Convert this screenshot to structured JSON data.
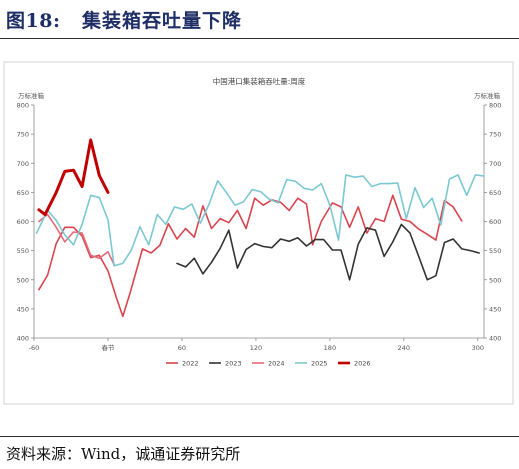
{
  "header": {
    "figure_number": "图18:",
    "figure_title": "集装箱吞吐量下降"
  },
  "source": "资料来源：Wind，诚通证券研究所",
  "colors": {
    "2022": "#d9454f",
    "2023": "#333333",
    "2024": "#e46a78",
    "2025": "#7cc8d2",
    "2026": "#c00000",
    "axis": "#888888",
    "heading": "#1f2f66"
  },
  "chart_data": {
    "type": "line",
    "title": "中国港口集装箱吞吐量:周度",
    "ylabel_left": "万标准箱",
    "ylabel_right": "万标准箱",
    "xlim": [
      -60,
      305
    ],
    "ylim": [
      400,
      800
    ],
    "x_ticks": [
      {
        "value": -60,
        "label": "-60"
      },
      {
        "value": 0,
        "label": "春节"
      },
      {
        "value": 60,
        "label": "60"
      },
      {
        "value": 120,
        "label": "120"
      },
      {
        "value": 180,
        "label": "180"
      },
      {
        "value": 240,
        "label": "240"
      },
      {
        "value": 300,
        "label": "300"
      }
    ],
    "y_ticks": [
      400,
      450,
      500,
      550,
      600,
      650,
      700,
      750,
      800
    ],
    "legend_position": "bottom",
    "series": [
      {
        "name": "2022",
        "color_key": "2022",
        "width": 1.6,
        "points": [
          [
            -56,
            483
          ],
          [
            -49,
            508
          ],
          [
            -42,
            562
          ],
          [
            -35,
            590
          ],
          [
            -28,
            590
          ],
          [
            -21,
            575
          ],
          [
            -14,
            538
          ],
          [
            -7,
            542
          ],
          [
            0,
            515
          ],
          [
            7,
            468
          ],
          [
            12,
            437
          ],
          [
            18,
            478
          ],
          [
            28,
            553
          ],
          [
            35,
            546
          ],
          [
            42,
            559
          ],
          [
            49,
            596
          ],
          [
            56,
            570
          ],
          [
            63,
            588
          ],
          [
            70,
            573
          ],
          [
            77,
            627
          ],
          [
            84,
            588
          ],
          [
            91,
            605
          ],
          [
            98,
            598
          ],
          [
            105,
            619
          ],
          [
            112,
            588
          ],
          [
            119,
            640
          ],
          [
            126,
            628
          ],
          [
            133,
            637
          ],
          [
            140,
            633
          ],
          [
            147,
            619
          ],
          [
            154,
            640
          ],
          [
            161,
            630
          ],
          [
            166,
            560
          ],
          [
            173,
            600
          ],
          [
            182,
            632
          ],
          [
            189,
            625
          ],
          [
            196,
            590
          ],
          [
            203,
            625
          ],
          [
            210,
            580
          ],
          [
            217,
            605
          ],
          [
            224,
            600
          ],
          [
            231,
            645
          ],
          [
            238,
            604
          ],
          [
            245,
            600
          ],
          [
            252,
            587
          ],
          [
            259,
            578
          ],
          [
            266,
            568
          ],
          [
            273,
            636
          ],
          [
            280,
            625
          ],
          [
            287,
            601
          ]
        ]
      },
      {
        "name": "2023",
        "color_key": "2023",
        "width": 1.6,
        "points": [
          [
            56,
            528
          ],
          [
            63,
            522
          ],
          [
            70,
            537
          ],
          [
            77,
            510
          ],
          [
            84,
            530
          ],
          [
            91,
            554
          ],
          [
            98,
            585
          ],
          [
            105,
            520
          ],
          [
            112,
            552
          ],
          [
            119,
            562
          ],
          [
            126,
            557
          ],
          [
            133,
            555
          ],
          [
            140,
            570
          ],
          [
            147,
            566
          ],
          [
            154,
            572
          ],
          [
            161,
            558
          ],
          [
            168,
            569
          ],
          [
            175,
            569
          ],
          [
            182,
            551
          ],
          [
            189,
            551
          ],
          [
            196,
            500
          ],
          [
            203,
            561
          ],
          [
            210,
            589
          ],
          [
            217,
            585
          ],
          [
            224,
            540
          ],
          [
            231,
            565
          ],
          [
            238,
            595
          ],
          [
            245,
            580
          ],
          [
            252,
            540
          ],
          [
            259,
            500
          ],
          [
            266,
            507
          ],
          [
            273,
            564
          ],
          [
            280,
            570
          ],
          [
            287,
            553
          ],
          [
            294,
            550
          ],
          [
            301,
            546
          ]
        ]
      },
      {
        "name": "2024",
        "color_key": "2024",
        "width": 1.6,
        "points": [
          [
            -56,
            600
          ],
          [
            -49,
            612
          ],
          [
            -42,
            590
          ],
          [
            -35,
            565
          ],
          [
            -28,
            582
          ],
          [
            -21,
            580
          ],
          [
            -14,
            542
          ],
          [
            -7,
            537
          ],
          [
            0,
            548
          ],
          [
            5,
            526
          ]
        ]
      },
      {
        "name": "2025",
        "color_key": "2025",
        "width": 1.6,
        "points": [
          [
            -58,
            580
          ],
          [
            -49,
            619
          ],
          [
            -42,
            602
          ],
          [
            -35,
            577
          ],
          [
            -28,
            560
          ],
          [
            -21,
            595
          ],
          [
            -14,
            645
          ],
          [
            -7,
            641
          ],
          [
            0,
            603
          ],
          [
            5,
            524
          ],
          [
            12,
            528
          ],
          [
            19,
            551
          ],
          [
            26,
            591
          ],
          [
            33,
            560
          ],
          [
            40,
            612
          ],
          [
            47,
            595
          ],
          [
            54,
            625
          ],
          [
            61,
            621
          ],
          [
            68,
            630
          ],
          [
            75,
            597
          ],
          [
            82,
            630
          ],
          [
            89,
            670
          ],
          [
            96,
            650
          ],
          [
            103,
            628
          ],
          [
            110,
            634
          ],
          [
            117,
            655
          ],
          [
            124,
            651
          ],
          [
            131,
            638
          ],
          [
            138,
            632
          ],
          [
            145,
            672
          ],
          [
            152,
            669
          ],
          [
            159,
            657
          ],
          [
            166,
            654
          ],
          [
            173,
            665
          ],
          [
            180,
            628
          ],
          [
            187,
            568
          ],
          [
            193,
            680
          ],
          [
            200,
            676
          ],
          [
            207,
            678
          ],
          [
            214,
            660
          ],
          [
            221,
            665
          ],
          [
            228,
            665
          ],
          [
            235,
            666
          ],
          [
            242,
            605
          ],
          [
            249,
            658
          ],
          [
            256,
            624
          ],
          [
            263,
            640
          ],
          [
            270,
            594
          ],
          [
            277,
            673
          ],
          [
            284,
            680
          ],
          [
            291,
            645
          ],
          [
            298,
            680
          ],
          [
            305,
            678
          ]
        ]
      },
      {
        "name": "2026",
        "color_key": "2026",
        "width": 3,
        "points": [
          [
            -56,
            620
          ],
          [
            -51,
            612
          ],
          [
            -42,
            650
          ],
          [
            -35,
            686
          ],
          [
            -28,
            688
          ],
          [
            -21,
            660
          ],
          [
            -14,
            740
          ],
          [
            -7,
            679
          ],
          [
            0,
            650
          ]
        ]
      }
    ]
  }
}
